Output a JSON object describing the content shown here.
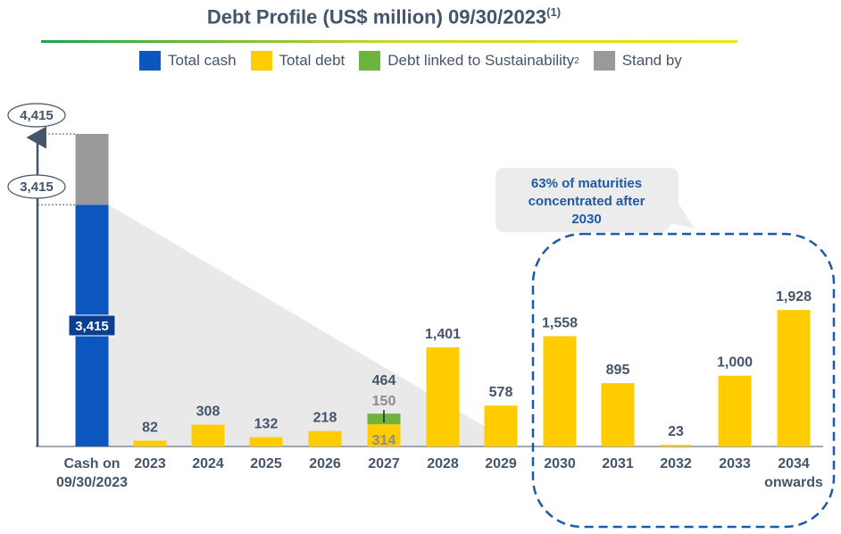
{
  "title": {
    "main": "Debt Profile (US$ million) 09/30/2023",
    "superscript": "(1)"
  },
  "legend": [
    {
      "label": "Total cash",
      "sup": "",
      "color": "#0b57bf"
    },
    {
      "label": "Total debt",
      "sup": "",
      "color": "#ffcc00"
    },
    {
      "label": "Debt linked to Sustainability",
      "sup": "2",
      "color": "#6db33f"
    },
    {
      "label": "Stand by",
      "sup": "",
      "color": "#9a9a9a"
    }
  ],
  "colors": {
    "cash": "#0b57bf",
    "debt": "#ffcc00",
    "sustainability": "#6db33f",
    "standby": "#9a9a9a",
    "text": "#44546a",
    "bubble_text": "#1f5aa6",
    "dashed_box": "#1f5aa6"
  },
  "chart_data": {
    "type": "bar",
    "categories": [
      "Cash on 09/30/2023",
      "2023",
      "2024",
      "2025",
      "2026",
      "2027",
      "2028",
      "2029",
      "2030",
      "2031",
      "2032",
      "2033",
      "2034 onwards"
    ],
    "category_lines": [
      [
        "Cash on",
        "09/30/2023"
      ],
      [
        "2023"
      ],
      [
        "2024"
      ],
      [
        "2025"
      ],
      [
        "2026"
      ],
      [
        "2027"
      ],
      [
        "2028"
      ],
      [
        "2029"
      ],
      [
        "2030"
      ],
      [
        "2031"
      ],
      [
        "2032"
      ],
      [
        "2033"
      ],
      [
        "2034",
        "onwards"
      ]
    ],
    "cash": {
      "total_cash": 3415,
      "stand_by": 1000,
      "total_label": "4,415",
      "cash_label": "3,415",
      "bar_label": "3,415"
    },
    "series": [
      {
        "name": "Total debt",
        "values": [
          null,
          82,
          308,
          132,
          218,
          314,
          1401,
          578,
          1558,
          895,
          23,
          1000,
          1928
        ]
      },
      {
        "name": "Debt linked to Sustainability",
        "values": [
          null,
          0,
          0,
          0,
          0,
          150,
          0,
          0,
          0,
          0,
          0,
          0,
          0
        ]
      }
    ],
    "value_labels": [
      "",
      "82",
      "308",
      "132",
      "218",
      "464",
      "1,401",
      "578",
      "1,558",
      "895",
      "23",
      "1,000",
      "1,928"
    ],
    "stack_labels_2027": {
      "debt": "314",
      "sustainability": "150"
    },
    "ylim": [
      0,
      4415
    ],
    "annotation": "63% of maturities concentrated after 2030",
    "annotation_lines": [
      "63% of maturities",
      "concentrated after",
      "2030"
    ],
    "highlighted_categories": [
      "2030",
      "2031",
      "2032",
      "2033",
      "2034 onwards"
    ],
    "grid": false,
    "legend_position": "top"
  }
}
